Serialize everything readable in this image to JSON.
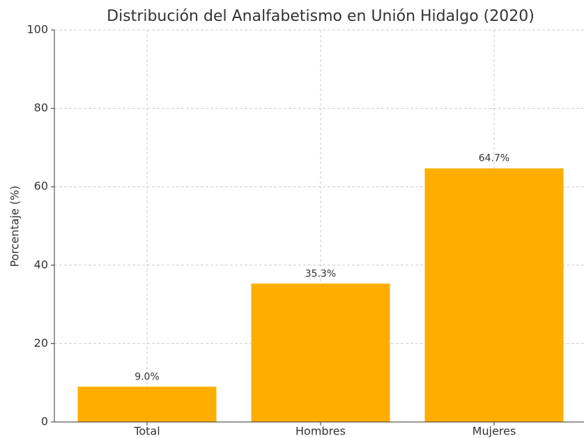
{
  "chart_data": {
    "type": "bar",
    "title": "Distribución del Analfabetismo en Unión Hidalgo (2020)",
    "y_label": "Porcentaje (%)",
    "categories": [
      "Total",
      "Hombres",
      "Mujeres"
    ],
    "values": [
      9.0,
      35.3,
      64.7
    ],
    "value_labels": [
      "9.0%",
      "35.3%",
      "64.7%"
    ],
    "color": "#ffae00",
    "ylim": [
      0,
      100
    ],
    "yticks": [
      0,
      20,
      40,
      60,
      80,
      100
    ],
    "grid": true
  }
}
